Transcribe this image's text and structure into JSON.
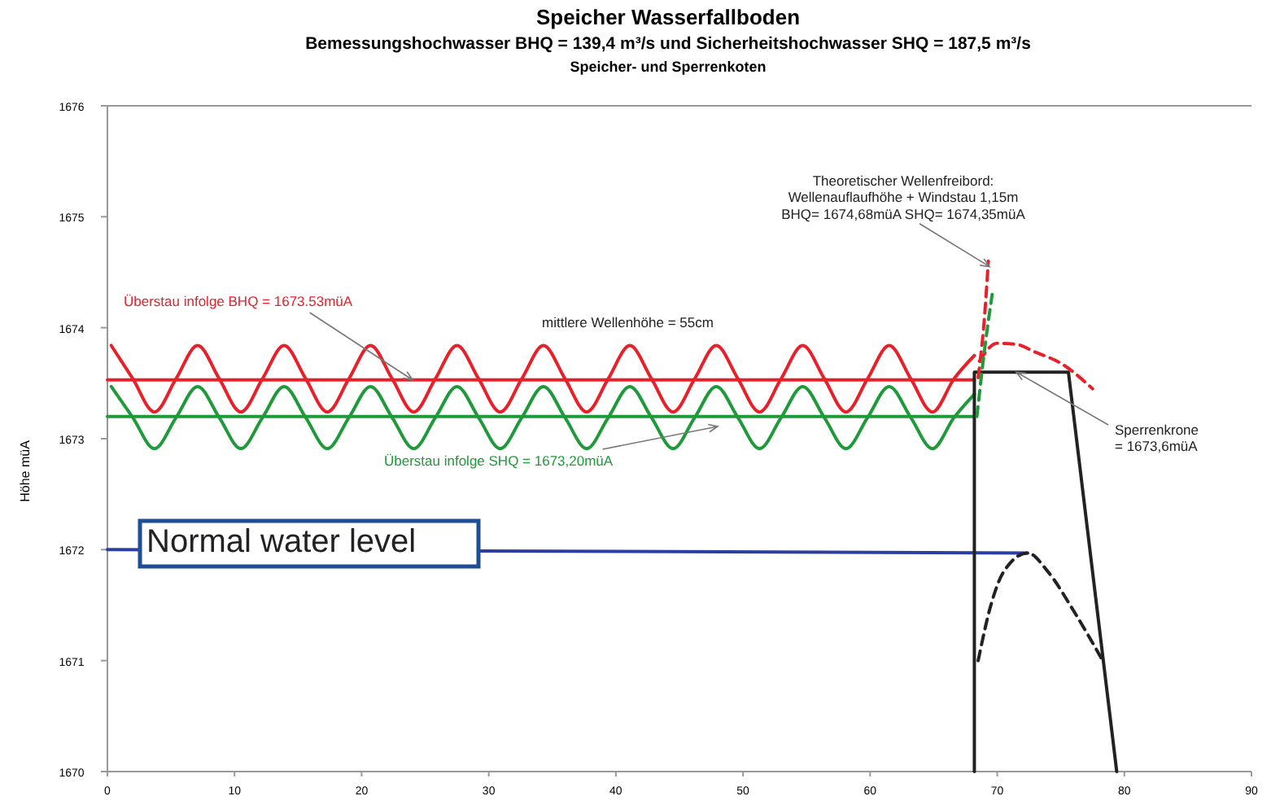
{
  "chart_data": {
    "type": "line",
    "title": "Speicher Wasserfallboden",
    "subtitle": "Bemessungshochwasser BHQ = 139,4 m³/s und Sicherheitshochwasser SHQ = 187,5 m³/s\nSpeicher- und Sperrenkoten",
    "ylabel": "Höhe müA",
    "xlim": [
      0,
      90
    ],
    "ylim": [
      1670,
      1676
    ],
    "xticks": [
      0,
      10,
      20,
      30,
      40,
      50,
      60,
      70,
      80,
      90
    ],
    "yticks": [
      1670,
      1671,
      1672,
      1673,
      1674,
      1675,
      1676
    ],
    "grid": false,
    "marker": "none",
    "series": [
      {
        "color": "#2c3fa0",
        "x": [
          0,
          72.4
        ],
        "values": [
          1672,
          1671.97
        ]
      },
      {
        "color": "#e8202a",
        "x": [
          0,
          68.2
        ],
        "values": [
          1673.53,
          1673.53
        ]
      },
      {
        "color": "#1f9a3a",
        "x": [
          0,
          68.2
        ],
        "values": [
          1673.2,
          1673.2
        ]
      },
      {
        "color": "#1f9a3a",
        "x": [
          0.3,
          2,
          3.7,
          5.4,
          7.1,
          8.8,
          10.5,
          12.2,
          13.9,
          15.6,
          17.3,
          19,
          20.7,
          22.4,
          24.1,
          25.8,
          27.5,
          29.2,
          30.9,
          32.6,
          34.3,
          36,
          37.7,
          39.4,
          41.1,
          42.8,
          44.5,
          46.2,
          47.9,
          49.6,
          51.3,
          53,
          54.7,
          56.4,
          58.1,
          59.8,
          61.5,
          63.2,
          64.9,
          66.6,
          68.2
        ],
        "values": [
          1673.47,
          1673.19,
          1672.91,
          1673.19,
          1673.47,
          1673.19,
          1672.91,
          1673.19,
          1673.47,
          1673.19,
          1672.91,
          1673.19,
          1673.47,
          1673.19,
          1672.91,
          1673.19,
          1673.47,
          1673.19,
          1672.91,
          1673.19,
          1673.47,
          1673.19,
          1672.91,
          1673.19,
          1673.47,
          1673.19,
          1672.91,
          1673.19,
          1673.47,
          1673.19,
          1672.91,
          1673.19,
          1673.47,
          1673.19,
          1672.91,
          1673.19,
          1673.47,
          1673.19,
          1672.91,
          1673.19,
          1673.4
        ]
      },
      {
        "color": "#e8202a",
        "x": [
          0.3,
          2,
          3.7,
          5.4,
          7.1,
          8.8,
          10.5,
          12.2,
          13.9,
          15.6,
          17.3,
          19,
          20.7,
          22.4,
          24.1,
          25.8,
          27.5,
          29.2,
          30.9,
          32.6,
          34.3,
          36,
          37.7,
          39.4,
          41.1,
          42.8,
          44.5,
          46.2,
          47.9,
          49.6,
          51.3,
          53,
          54.7,
          56.4,
          58.1,
          59.8,
          61.5,
          63.2,
          64.9,
          66.6,
          68.2
        ],
        "values": [
          1673.84,
          1673.54,
          1673.24,
          1673.54,
          1673.84,
          1673.54,
          1673.24,
          1673.54,
          1673.84,
          1673.54,
          1673.24,
          1673.54,
          1673.84,
          1673.54,
          1673.24,
          1673.54,
          1673.84,
          1673.54,
          1673.24,
          1673.54,
          1673.84,
          1673.54,
          1673.24,
          1673.54,
          1673.84,
          1673.54,
          1673.24,
          1673.54,
          1673.84,
          1673.54,
          1673.24,
          1673.54,
          1673.84,
          1673.54,
          1673.24,
          1673.54,
          1673.84,
          1673.54,
          1673.24,
          1673.54,
          1673.75
        ]
      },
      {
        "color": "#222222",
        "x": [
          68.2,
          68.2,
          75.6,
          79.4
        ],
        "values": [
          1670,
          1673.6,
          1673.6,
          1670
        ]
      },
      {
        "color": "#222222",
        "line_style": "dashed",
        "x": [
          68.5,
          69.5,
          70.5,
          72.4,
          74,
          76,
          78.3
        ],
        "values": [
          1671,
          1671.5,
          1671.8,
          1671.97,
          1671.8,
          1671.45,
          1671
        ]
      },
      {
        "color": "#e8202a",
        "line_style": "dashed",
        "x": [
          68.6,
          70,
          71.5,
          73,
          75,
          77.5
        ],
        "values": [
          1673.7,
          1673.86,
          1673.85,
          1673.78,
          1673.68,
          1673.45
        ]
      },
      {
        "color": "#e8202a",
        "line_style": "dashed",
        "x": [
          68.5,
          69,
          69.3
        ],
        "values": [
          1673.55,
          1674.1,
          1674.6
        ]
      },
      {
        "color": "#1f9a3a",
        "line_style": "dashed",
        "x": [
          68.4,
          69,
          69.6
        ],
        "values": [
          1673.2,
          1673.8,
          1674.3
        ]
      }
    ],
    "annotations": [
      {
        "text": "Überstau infolge BHQ = 1673.53müA",
        "x": 24,
        "y": 1673.53
      },
      "mittlere Wellenhöhe = 55cm",
      "Überstau infolge SHQ = 1673,20müA",
      {
        "text": "Theoretischer Wellenfreibord:\nWellenauflaufhöhe + Windstau 1,15m\nBHQ= 1674,68müA  SHQ= 1674,35müA",
        "x": 69.4,
        "y": 1674.55
      },
      {
        "text": "Sperrenkrone\n= 1673,6müA",
        "x": 71.5,
        "y": 1673.6
      },
      "Normal water level"
    ]
  }
}
